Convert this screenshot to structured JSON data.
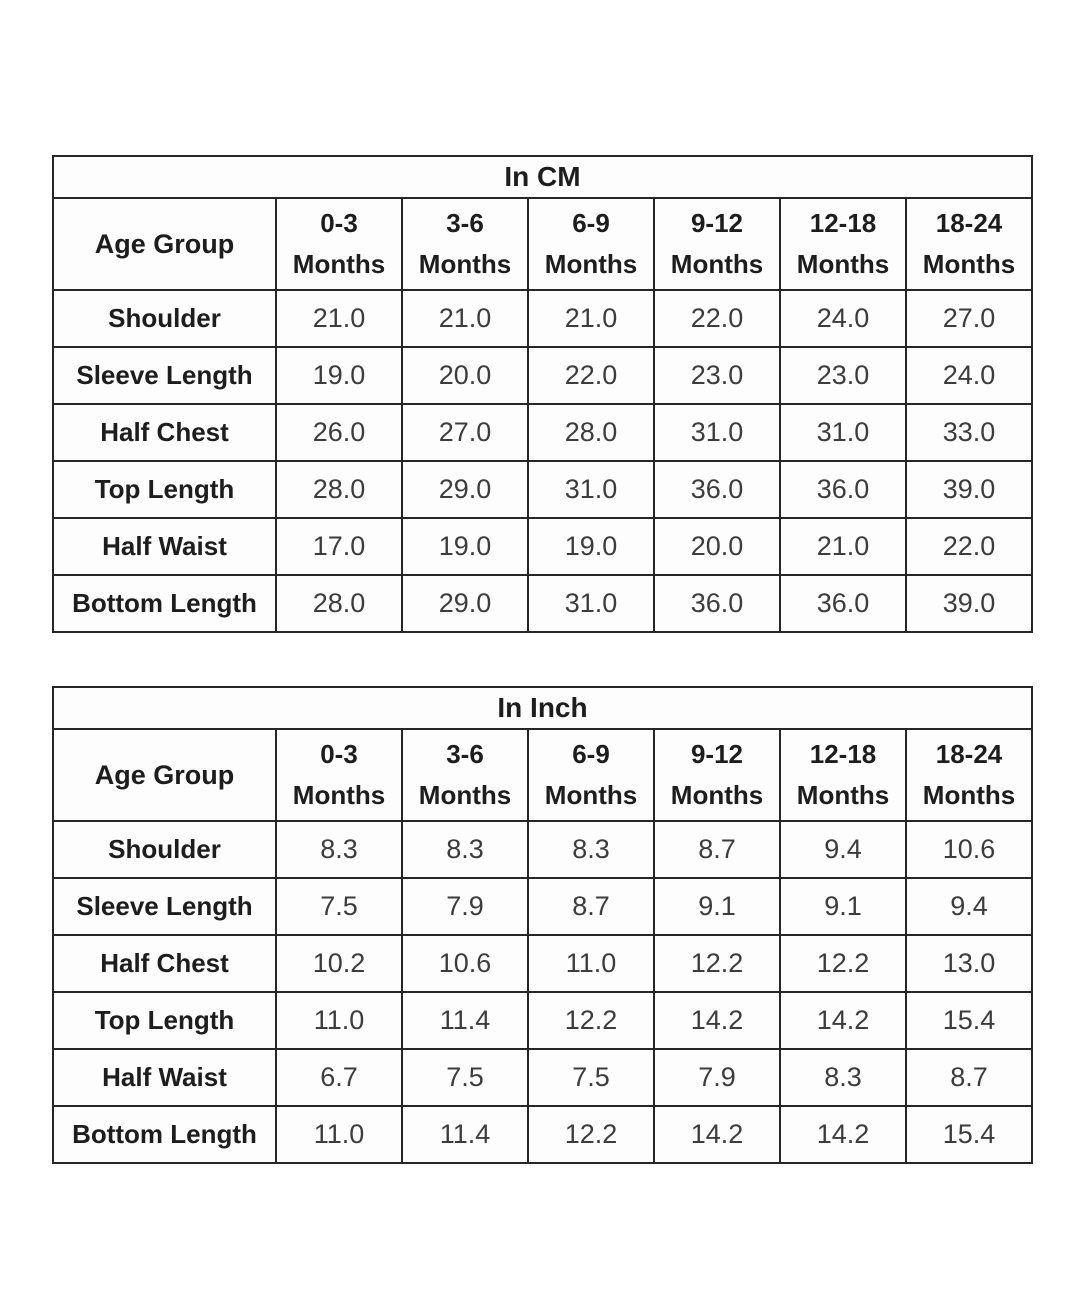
{
  "colors": {
    "background": "#ffffff",
    "border": "#262626",
    "label_text": "#1d1d1d",
    "value_text": "#3c3c3c"
  },
  "tables": [
    {
      "name": "size-table-cm",
      "title": "In CM",
      "corner_label": "Age Group",
      "columns": [
        {
          "line1": "0-3",
          "line2": "Months"
        },
        {
          "line1": "3-6",
          "line2": "Months"
        },
        {
          "line1": "6-9",
          "line2": "Months"
        },
        {
          "line1": "9-12",
          "line2": "Months"
        },
        {
          "line1": "12-18",
          "line2": "Months"
        },
        {
          "line1": "18-24",
          "line2": "Months"
        }
      ],
      "rows": [
        {
          "label": "Shoulder",
          "values": [
            "21.0",
            "21.0",
            "21.0",
            "22.0",
            "24.0",
            "27.0"
          ]
        },
        {
          "label": "Sleeve Length",
          "values": [
            "19.0",
            "20.0",
            "22.0",
            "23.0",
            "23.0",
            "24.0"
          ]
        },
        {
          "label": "Half Chest",
          "values": [
            "26.0",
            "27.0",
            "28.0",
            "31.0",
            "31.0",
            "33.0"
          ]
        },
        {
          "label": "Top Length",
          "values": [
            "28.0",
            "29.0",
            "31.0",
            "36.0",
            "36.0",
            "39.0"
          ]
        },
        {
          "label": "Half Waist",
          "values": [
            "17.0",
            "19.0",
            "19.0",
            "20.0",
            "21.0",
            "22.0"
          ]
        },
        {
          "label": "Bottom Length",
          "values": [
            "28.0",
            "29.0",
            "31.0",
            "36.0",
            "36.0",
            "39.0"
          ]
        }
      ]
    },
    {
      "name": "size-table-inch",
      "title": "In Inch",
      "corner_label": "Age Group",
      "columns": [
        {
          "line1": "0-3",
          "line2": "Months"
        },
        {
          "line1": "3-6",
          "line2": "Months"
        },
        {
          "line1": "6-9",
          "line2": "Months"
        },
        {
          "line1": "9-12",
          "line2": "Months"
        },
        {
          "line1": "12-18",
          "line2": "Months"
        },
        {
          "line1": "18-24",
          "line2": "Months"
        }
      ],
      "rows": [
        {
          "label": "Shoulder",
          "values": [
            "8.3",
            "8.3",
            "8.3",
            "8.7",
            "9.4",
            "10.6"
          ]
        },
        {
          "label": "Sleeve Length",
          "values": [
            "7.5",
            "7.9",
            "8.7",
            "9.1",
            "9.1",
            "9.4"
          ]
        },
        {
          "label": "Half Chest",
          "values": [
            "10.2",
            "10.6",
            "11.0",
            "12.2",
            "12.2",
            "13.0"
          ]
        },
        {
          "label": "Top Length",
          "values": [
            "11.0",
            "11.4",
            "12.2",
            "14.2",
            "14.2",
            "15.4"
          ]
        },
        {
          "label": "Half Waist",
          "values": [
            "6.7",
            "7.5",
            "7.5",
            "7.9",
            "8.3",
            "8.7"
          ]
        },
        {
          "label": "Bottom Length",
          "values": [
            "11.0",
            "11.4",
            "12.2",
            "14.2",
            "14.2",
            "15.4"
          ]
        }
      ]
    }
  ]
}
